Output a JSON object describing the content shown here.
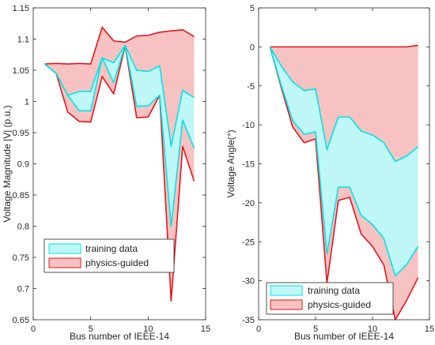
{
  "colors": {
    "training_fill": "#bff7f7",
    "training_line": "#00e5e5",
    "physics_fill": "#f7c2c2",
    "physics_line": "#e8141b",
    "axis": "#262626",
    "grid": "#e6e6e6"
  },
  "chart_data": [
    {
      "type": "area",
      "title": "",
      "xlabel": "Bus number of IEEE-14",
      "ylabel": "Voltage Magnitude |V| (p.u.)",
      "xlim": [
        0,
        15
      ],
      "ylim": [
        0.65,
        1.15
      ],
      "xticks": [
        "0",
        "5",
        "10",
        "15"
      ],
      "yticks": [
        "0.65",
        "0.7",
        "0.75",
        "0.8",
        "0.85",
        "0.9",
        "0.95",
        "1",
        "1.05",
        "1.1",
        "1.15"
      ],
      "legend_position": "bottom-left",
      "x": [
        1,
        2,
        3,
        4,
        5,
        6,
        7,
        8,
        9,
        10,
        11,
        12,
        13,
        14
      ],
      "series": [
        {
          "name": "training data",
          "upper": [
            1.06,
            1.045,
            1.01,
            1.016,
            1.016,
            1.07,
            1.062,
            1.09,
            1.05,
            1.048,
            1.057,
            0.928,
            1.018,
            1.006
          ],
          "lower": [
            1.06,
            1.045,
            1.01,
            0.985,
            0.985,
            1.07,
            1.03,
            1.09,
            0.992,
            0.993,
            1.01,
            0.8,
            0.97,
            0.925
          ]
        },
        {
          "name": "physics-guided",
          "upper": [
            1.06,
            1.061,
            1.06,
            1.061,
            1.06,
            1.119,
            1.097,
            1.095,
            1.105,
            1.106,
            1.111,
            1.113,
            1.115,
            1.104
          ],
          "lower": [
            1.06,
            1.045,
            0.983,
            0.968,
            0.967,
            1.04,
            1.012,
            1.089,
            0.974,
            0.975,
            1.01,
            0.68,
            0.928,
            0.872
          ]
        }
      ]
    },
    {
      "type": "area",
      "title": "",
      "xlabel": "Bus number of IEEE-14",
      "ylabel": "Voltage Angle(°)",
      "xlim": [
        0,
        15
      ],
      "ylim": [
        -35,
        5
      ],
      "xticks": [
        "0",
        "5",
        "10",
        "15"
      ],
      "yticks": [
        "-35",
        "-30",
        "-25",
        "-20",
        "-15",
        "-10",
        "-5",
        "0",
        "5"
      ],
      "legend_position": "bottom-left",
      "x": [
        1,
        2,
        3,
        4,
        5,
        6,
        7,
        8,
        9,
        10,
        11,
        12,
        13,
        14
      ],
      "series": [
        {
          "name": "training data",
          "upper": [
            0,
            -2.5,
            -4.5,
            -5.6,
            -5.4,
            -13.2,
            -9.0,
            -9.0,
            -10.8,
            -11.3,
            -12.3,
            -14.7,
            -14.0,
            -12.8
          ],
          "lower": [
            0,
            -5.0,
            -9.5,
            -11.2,
            -10.9,
            -26.6,
            -18.0,
            -18.0,
            -21.6,
            -22.8,
            -24.6,
            -29.4,
            -27.9,
            -25.6
          ]
        },
        {
          "name": "physics-guided",
          "upper": [
            0,
            0,
            0,
            0,
            0,
            0,
            0,
            0,
            0,
            0,
            0,
            0,
            0,
            0.2
          ],
          "lower": [
            0,
            -5.3,
            -10.3,
            -12.3,
            -11.8,
            -30.3,
            -19.7,
            -19.3,
            -24.0,
            -25.6,
            -28.0,
            -35.0,
            -32.5,
            -29.6
          ]
        }
      ]
    }
  ]
}
